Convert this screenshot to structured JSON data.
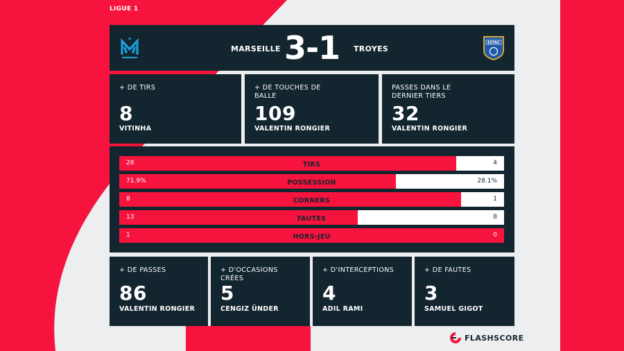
{
  "league": "LIGUE 1",
  "match": {
    "home_team": "MARSEILLE",
    "away_team": "TROYES",
    "score": "3-1",
    "home_crest_text": "DROIT AU BUT",
    "away_crest_text": "ESTAC"
  },
  "top_stats": [
    {
      "label": "+ DE TIRS",
      "value": "8",
      "player": "VITINHA"
    },
    {
      "label": "+ DE TOUCHES DE BALLE",
      "value": "109",
      "player": "VALENTIN RONGIER"
    },
    {
      "label": "PASSES DANS LE DERNIER TIERS",
      "value": "32",
      "player": "VALENTIN RONGIER"
    }
  ],
  "comparison": [
    {
      "label": "TIRS",
      "home": "28",
      "away": "4",
      "home_share": 0.875
    },
    {
      "label": "POSSESSION",
      "home": "71.9%",
      "away": "28.1%",
      "home_share": 0.719
    },
    {
      "label": "CORNERS",
      "home": "8",
      "away": "1",
      "home_share": 0.889
    },
    {
      "label": "FAUTES",
      "home": "13",
      "away": "8",
      "home_share": 0.619
    },
    {
      "label": "HORS-JEU",
      "home": "1",
      "away": "0",
      "home_share": 1.0
    }
  ],
  "bottom_stats": [
    {
      "label": "+ DE PASSES",
      "value": "86",
      "player": "VALENTIN RONGIER"
    },
    {
      "label": "+ D'OCCASIONS CRÉES",
      "value": "5",
      "player": "CENGIZ ÜNDER"
    },
    {
      "label": "+ D'INTERCEPTIONS",
      "value": "4",
      "player": "ADIL RAMI"
    },
    {
      "label": "+ DE FAUTES",
      "value": "3",
      "player": "SAMUEL GIGOT"
    }
  ],
  "brand": "FLASHSCORE",
  "colors": {
    "accent": "#f6133d",
    "panel": "#13252f",
    "background": "#eceef0"
  }
}
